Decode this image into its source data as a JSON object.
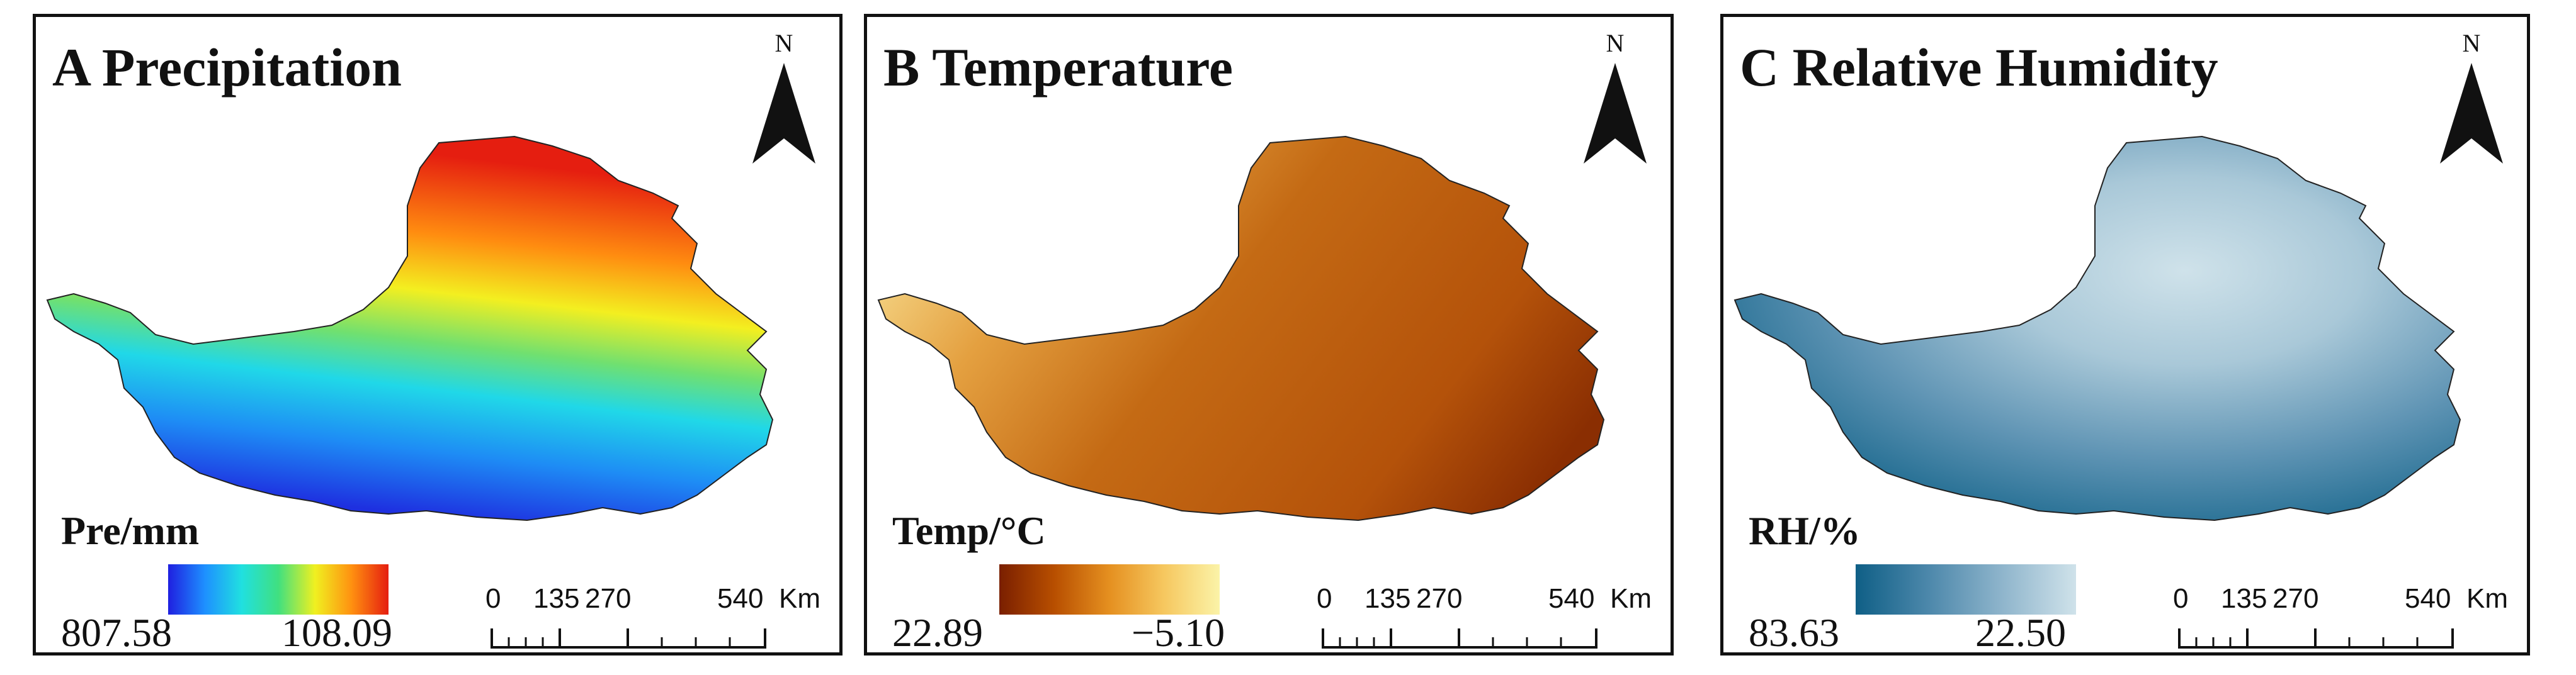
{
  "panels": [
    {
      "title": "A Precipitation",
      "legend_title": "Pre/mm",
      "legend_left": "807.58",
      "legend_right": "108.09",
      "colors": [
        "#1f1fe0",
        "#1e90ff",
        "#20e0e0",
        "#40e080",
        "#f0f020",
        "#ff9010",
        "#e51e10"
      ]
    },
    {
      "title": "B Temperature",
      "legend_title": "Temp/°C",
      "legend_left": "22.89",
      "legend_right": "−5.10",
      "colors": [
        "#7a1f00",
        "#b84f00",
        "#e59020",
        "#f6c860",
        "#fbf3a8"
      ]
    },
    {
      "title": "C Relative Humidity",
      "legend_title": "RH/%",
      "legend_left": "83.63",
      "legend_right": "22.50",
      "colors": [
        "#0f5f86",
        "#4d88ab",
        "#8fb5cc",
        "#cfe2ea"
      ]
    }
  ],
  "north_label": "N",
  "scale": {
    "ticks": [
      "0",
      "135",
      "270",
      "540"
    ],
    "unit": "Km"
  }
}
